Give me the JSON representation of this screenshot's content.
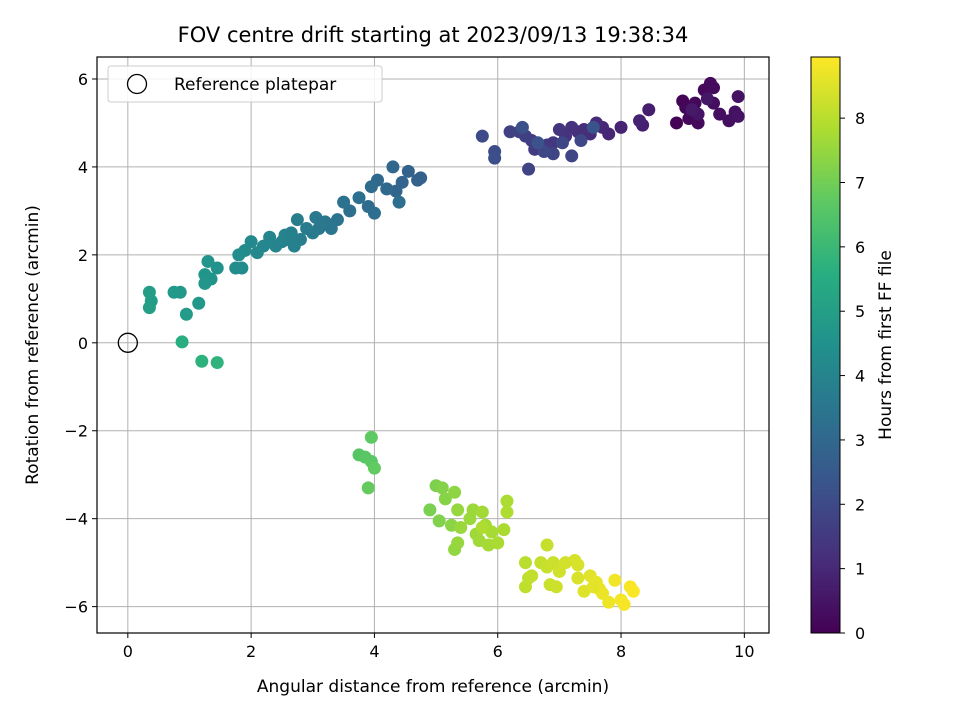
{
  "chart_data": {
    "type": "scatter",
    "title": "FOV centre drift starting at 2023/09/13 19:38:34",
    "xlabel": "Angular distance from reference (arcmin)",
    "ylabel": "Rotation from reference (arcmin)",
    "xlim": [
      -0.5,
      10.4
    ],
    "ylim": [
      -6.6,
      6.5
    ],
    "xticks": [
      0,
      2,
      4,
      6,
      8,
      10
    ],
    "yticks": [
      -6,
      -4,
      -2,
      0,
      2,
      4,
      6
    ],
    "grid": true,
    "legend": {
      "position": "top-left",
      "entries": [
        "Reference platepar"
      ]
    },
    "reference_point": {
      "name": "Reference platepar",
      "x": 0,
      "y": 0,
      "marker": "open-circle"
    },
    "colorbar": {
      "label": "Hours from first FF file",
      "colormap": "viridis",
      "range": [
        0,
        8.95
      ],
      "ticks": [
        0,
        1,
        2,
        3,
        4,
        5,
        6,
        7,
        8
      ]
    },
    "points": [
      {
        "x": 8.9,
        "y": 5.0,
        "c": 0.05
      },
      {
        "x": 9.0,
        "y": 5.5,
        "c": 0.1
      },
      {
        "x": 9.05,
        "y": 5.35,
        "c": 0.12
      },
      {
        "x": 9.1,
        "y": 5.1,
        "c": 0.15
      },
      {
        "x": 9.2,
        "y": 5.45,
        "c": 0.18
      },
      {
        "x": 9.25,
        "y": 5.0,
        "c": 0.2
      },
      {
        "x": 9.35,
        "y": 5.75,
        "c": 0.22
      },
      {
        "x": 9.45,
        "y": 5.9,
        "c": 0.25
      },
      {
        "x": 9.5,
        "y": 5.8,
        "c": 0.28
      },
      {
        "x": 9.5,
        "y": 5.45,
        "c": 0.3
      },
      {
        "x": 9.6,
        "y": 5.2,
        "c": 0.33
      },
      {
        "x": 9.75,
        "y": 5.05,
        "c": 0.36
      },
      {
        "x": 9.85,
        "y": 5.25,
        "c": 0.4
      },
      {
        "x": 9.9,
        "y": 5.6,
        "c": 0.42
      },
      {
        "x": 9.9,
        "y": 5.15,
        "c": 0.45
      },
      {
        "x": 9.25,
        "y": 5.2,
        "c": 0.5
      },
      {
        "x": 9.4,
        "y": 5.55,
        "c": 0.55
      },
      {
        "x": 9.15,
        "y": 5.3,
        "c": 0.6
      },
      {
        "x": 8.45,
        "y": 5.3,
        "c": 0.75
      },
      {
        "x": 8.35,
        "y": 4.95,
        "c": 0.8
      },
      {
        "x": 8.3,
        "y": 5.05,
        "c": 0.85
      },
      {
        "x": 8.0,
        "y": 4.9,
        "c": 0.9
      },
      {
        "x": 7.8,
        "y": 4.75,
        "c": 0.95
      },
      {
        "x": 7.7,
        "y": 4.9,
        "c": 1.0
      },
      {
        "x": 7.6,
        "y": 5.0,
        "c": 1.05
      },
      {
        "x": 7.5,
        "y": 4.75,
        "c": 1.1
      },
      {
        "x": 7.4,
        "y": 4.85,
        "c": 1.15
      },
      {
        "x": 7.3,
        "y": 4.8,
        "c": 1.2
      },
      {
        "x": 7.2,
        "y": 4.9,
        "c": 1.25
      },
      {
        "x": 7.1,
        "y": 4.7,
        "c": 1.3
      },
      {
        "x": 7.0,
        "y": 4.85,
        "c": 1.35
      },
      {
        "x": 6.9,
        "y": 4.55,
        "c": 1.4
      },
      {
        "x": 6.8,
        "y": 4.5,
        "c": 1.45
      },
      {
        "x": 6.7,
        "y": 4.45,
        "c": 1.5
      },
      {
        "x": 6.6,
        "y": 4.4,
        "c": 1.55
      },
      {
        "x": 6.55,
        "y": 4.6,
        "c": 1.6
      },
      {
        "x": 6.45,
        "y": 4.7,
        "c": 1.65
      },
      {
        "x": 6.35,
        "y": 4.8,
        "c": 1.7
      },
      {
        "x": 6.2,
        "y": 4.8,
        "c": 1.75
      },
      {
        "x": 6.5,
        "y": 3.95,
        "c": 1.8
      },
      {
        "x": 6.9,
        "y": 4.3,
        "c": 1.82
      },
      {
        "x": 7.2,
        "y": 4.25,
        "c": 1.85
      },
      {
        "x": 7.05,
        "y": 4.55,
        "c": 1.88
      },
      {
        "x": 7.35,
        "y": 4.6,
        "c": 1.9
      },
      {
        "x": 6.75,
        "y": 4.35,
        "c": 1.95
      },
      {
        "x": 5.75,
        "y": 4.7,
        "c": 2.05
      },
      {
        "x": 5.95,
        "y": 4.35,
        "c": 2.1
      },
      {
        "x": 5.95,
        "y": 4.2,
        "c": 2.15
      },
      {
        "x": 6.4,
        "y": 4.9,
        "c": 2.2
      },
      {
        "x": 6.65,
        "y": 4.55,
        "c": 2.25
      },
      {
        "x": 7.55,
        "y": 4.9,
        "c": 2.28
      },
      {
        "x": 4.75,
        "y": 3.75,
        "c": 2.7
      },
      {
        "x": 4.7,
        "y": 3.7,
        "c": 2.75
      },
      {
        "x": 4.55,
        "y": 3.9,
        "c": 2.8
      },
      {
        "x": 4.45,
        "y": 3.65,
        "c": 2.85
      },
      {
        "x": 4.35,
        "y": 3.45,
        "c": 2.9
      },
      {
        "x": 4.3,
        "y": 4.0,
        "c": 2.95
      },
      {
        "x": 4.2,
        "y": 3.5,
        "c": 3.0
      },
      {
        "x": 4.05,
        "y": 3.7,
        "c": 3.05
      },
      {
        "x": 3.95,
        "y": 3.55,
        "c": 3.1
      },
      {
        "x": 3.9,
        "y": 3.1,
        "c": 3.15
      },
      {
        "x": 4.0,
        "y": 2.95,
        "c": 3.2
      },
      {
        "x": 4.4,
        "y": 3.2,
        "c": 3.22
      },
      {
        "x": 3.75,
        "y": 3.3,
        "c": 3.25
      },
      {
        "x": 3.6,
        "y": 3.0,
        "c": 3.3
      },
      {
        "x": 3.5,
        "y": 3.2,
        "c": 3.35
      },
      {
        "x": 3.4,
        "y": 2.8,
        "c": 3.4
      },
      {
        "x": 3.3,
        "y": 2.6,
        "c": 3.45
      },
      {
        "x": 3.2,
        "y": 2.75,
        "c": 3.5
      },
      {
        "x": 3.1,
        "y": 2.6,
        "c": 3.55
      },
      {
        "x": 3.05,
        "y": 2.85,
        "c": 3.6
      },
      {
        "x": 3.0,
        "y": 2.5,
        "c": 3.65
      },
      {
        "x": 2.9,
        "y": 2.6,
        "c": 3.7
      },
      {
        "x": 2.75,
        "y": 2.8,
        "c": 3.75
      },
      {
        "x": 2.8,
        "y": 2.35,
        "c": 3.8
      },
      {
        "x": 2.7,
        "y": 2.2,
        "c": 3.85
      },
      {
        "x": 2.6,
        "y": 2.35,
        "c": 3.9
      },
      {
        "x": 2.5,
        "y": 2.3,
        "c": 3.95
      },
      {
        "x": 2.4,
        "y": 2.2,
        "c": 4.0
      },
      {
        "x": 2.3,
        "y": 2.4,
        "c": 4.05
      },
      {
        "x": 2.2,
        "y": 2.2,
        "c": 4.1
      },
      {
        "x": 2.1,
        "y": 2.05,
        "c": 4.15
      },
      {
        "x": 2.0,
        "y": 2.3,
        "c": 4.2
      },
      {
        "x": 1.9,
        "y": 2.1,
        "c": 4.22
      },
      {
        "x": 1.85,
        "y": 1.7,
        "c": 4.25
      },
      {
        "x": 1.75,
        "y": 1.7,
        "c": 4.28
      },
      {
        "x": 1.8,
        "y": 2.0,
        "c": 4.3
      },
      {
        "x": 2.55,
        "y": 2.45,
        "c": 3.92
      },
      {
        "x": 2.65,
        "y": 2.5,
        "c": 3.88
      },
      {
        "x": 3.15,
        "y": 2.7,
        "c": 3.52
      },
      {
        "x": 1.45,
        "y": 1.7,
        "c": 4.5
      },
      {
        "x": 1.35,
        "y": 1.45,
        "c": 4.55
      },
      {
        "x": 1.3,
        "y": 1.85,
        "c": 4.6
      },
      {
        "x": 1.25,
        "y": 1.55,
        "c": 4.62
      },
      {
        "x": 1.25,
        "y": 1.35,
        "c": 4.65
      },
      {
        "x": 1.15,
        "y": 0.9,
        "c": 4.7
      },
      {
        "x": 0.85,
        "y": 1.15,
        "c": 4.75
      },
      {
        "x": 0.75,
        "y": 1.15,
        "c": 4.8
      },
      {
        "x": 0.95,
        "y": 0.65,
        "c": 4.85
      },
      {
        "x": 0.38,
        "y": 0.95,
        "c": 4.9
      },
      {
        "x": 0.35,
        "y": 1.15,
        "c": 4.95
      },
      {
        "x": 0.35,
        "y": 0.8,
        "c": 5.0
      },
      {
        "x": 0.88,
        "y": 0.02,
        "c": 5.6
      },
      {
        "x": 1.2,
        "y": -0.42,
        "c": 5.7
      },
      {
        "x": 1.45,
        "y": -0.45,
        "c": 5.75
      },
      {
        "x": 3.75,
        "y": -2.55,
        "c": 6.55
      },
      {
        "x": 3.85,
        "y": -2.6,
        "c": 6.6
      },
      {
        "x": 3.95,
        "y": -2.7,
        "c": 6.65
      },
      {
        "x": 3.95,
        "y": -2.15,
        "c": 6.7
      },
      {
        "x": 4.0,
        "y": -2.85,
        "c": 6.75
      },
      {
        "x": 3.9,
        "y": -3.3,
        "c": 6.8
      },
      {
        "x": 4.9,
        "y": -3.8,
        "c": 7.1
      },
      {
        "x": 5.0,
        "y": -3.25,
        "c": 7.15
      },
      {
        "x": 5.05,
        "y": -4.05,
        "c": 7.2
      },
      {
        "x": 5.1,
        "y": -3.3,
        "c": 7.25
      },
      {
        "x": 5.15,
        "y": -3.55,
        "c": 7.3
      },
      {
        "x": 5.25,
        "y": -4.15,
        "c": 7.35
      },
      {
        "x": 5.3,
        "y": -3.4,
        "c": 7.4
      },
      {
        "x": 5.3,
        "y": -4.7,
        "c": 7.45
      },
      {
        "x": 5.35,
        "y": -4.55,
        "c": 7.5
      },
      {
        "x": 5.35,
        "y": -3.8,
        "c": 7.52
      },
      {
        "x": 5.4,
        "y": -4.2,
        "c": 7.55
      },
      {
        "x": 5.55,
        "y": -4.0,
        "c": 7.58
      },
      {
        "x": 5.6,
        "y": -3.8,
        "c": 7.6
      },
      {
        "x": 5.65,
        "y": -4.35,
        "c": 7.62
      },
      {
        "x": 5.7,
        "y": -4.5,
        "c": 7.65
      },
      {
        "x": 5.75,
        "y": -3.85,
        "c": 7.68
      },
      {
        "x": 5.8,
        "y": -4.15,
        "c": 7.7
      },
      {
        "x": 5.85,
        "y": -4.6,
        "c": 7.72
      },
      {
        "x": 5.9,
        "y": -4.3,
        "c": 7.75
      },
      {
        "x": 6.0,
        "y": -4.55,
        "c": 7.78
      },
      {
        "x": 6.1,
        "y": -4.25,
        "c": 7.8
      },
      {
        "x": 6.15,
        "y": -3.6,
        "c": 7.82
      },
      {
        "x": 6.15,
        "y": -3.85,
        "c": 7.84
      },
      {
        "x": 5.75,
        "y": -4.2,
        "c": 7.86
      },
      {
        "x": 6.45,
        "y": -5.0,
        "c": 8.0
      },
      {
        "x": 6.5,
        "y": -5.35,
        "c": 8.05
      },
      {
        "x": 6.45,
        "y": -5.55,
        "c": 8.1
      },
      {
        "x": 6.55,
        "y": -5.3,
        "c": 8.12
      },
      {
        "x": 6.7,
        "y": -5.0,
        "c": 8.15
      },
      {
        "x": 6.8,
        "y": -4.6,
        "c": 8.18
      },
      {
        "x": 6.8,
        "y": -5.1,
        "c": 8.2
      },
      {
        "x": 6.85,
        "y": -5.5,
        "c": 8.22
      },
      {
        "x": 6.9,
        "y": -5.0,
        "c": 8.25
      },
      {
        "x": 6.95,
        "y": -5.55,
        "c": 8.28
      },
      {
        "x": 7.0,
        "y": -5.2,
        "c": 8.3
      },
      {
        "x": 7.1,
        "y": -5.0,
        "c": 8.35
      },
      {
        "x": 7.25,
        "y": -4.95,
        "c": 8.4
      },
      {
        "x": 7.3,
        "y": -5.05,
        "c": 8.42
      },
      {
        "x": 7.3,
        "y": -5.35,
        "c": 8.45
      },
      {
        "x": 7.4,
        "y": -5.65,
        "c": 8.5
      },
      {
        "x": 7.5,
        "y": -5.3,
        "c": 8.55
      },
      {
        "x": 7.6,
        "y": -5.45,
        "c": 8.6
      },
      {
        "x": 7.65,
        "y": -5.6,
        "c": 8.65
      },
      {
        "x": 7.7,
        "y": -5.7,
        "c": 8.7
      },
      {
        "x": 7.8,
        "y": -5.9,
        "c": 8.75
      },
      {
        "x": 7.9,
        "y": -5.4,
        "c": 8.78
      },
      {
        "x": 8.0,
        "y": -5.85,
        "c": 8.82
      },
      {
        "x": 8.05,
        "y": -5.95,
        "c": 8.85
      },
      {
        "x": 8.15,
        "y": -5.55,
        "c": 8.88
      },
      {
        "x": 8.2,
        "y": -5.65,
        "c": 8.9
      },
      {
        "x": 7.55,
        "y": -5.55,
        "c": 8.58
      }
    ]
  }
}
